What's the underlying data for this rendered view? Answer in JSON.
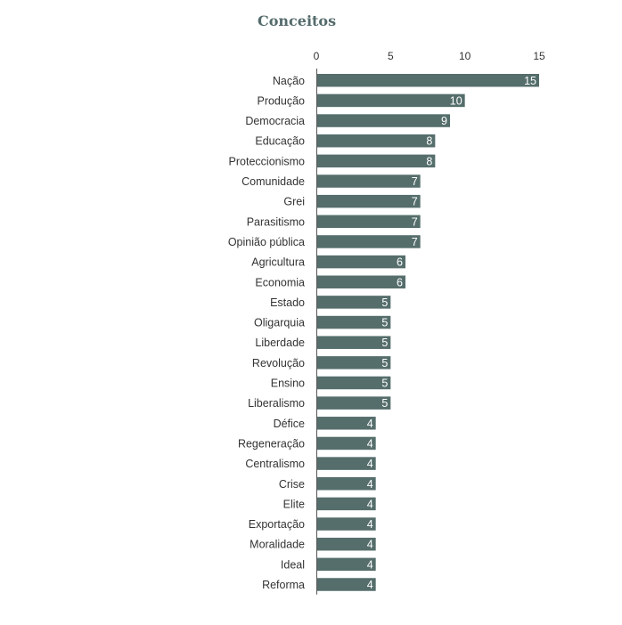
{
  "chart_data": {
    "type": "bar",
    "orientation": "horizontal",
    "title": "Conceitos",
    "xlabel": "",
    "ylabel": "",
    "xlim": [
      0,
      15
    ],
    "ticks": [
      "0",
      "5",
      "10",
      "15"
    ],
    "grid": false,
    "bar_color": "#556e6c",
    "categories": [
      "Nação",
      "Produção",
      "Democracia",
      "Educação",
      "Proteccionismo",
      "Comunidade",
      "Grei",
      "Parasitismo",
      "Opinião pública",
      "Agricultura",
      "Economia",
      "Estado",
      "Oligarquia",
      "Liberdade",
      "Revolução",
      "Ensino",
      "Liberalismo",
      "Défice",
      "Regeneração",
      "Centralismo",
      "Crise",
      "Elite",
      "Exportação",
      "Moralidade",
      "Ideal",
      "Reforma"
    ],
    "values": [
      15,
      10,
      9,
      8,
      8,
      7,
      7,
      7,
      7,
      6,
      6,
      5,
      5,
      5,
      5,
      5,
      5,
      4,
      4,
      4,
      4,
      4,
      4,
      4,
      4,
      4
    ]
  }
}
